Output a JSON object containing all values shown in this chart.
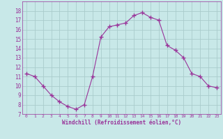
{
  "hours": [
    0,
    1,
    2,
    3,
    4,
    5,
    6,
    7,
    8,
    9,
    10,
    11,
    12,
    13,
    14,
    15,
    16,
    17,
    18,
    19,
    20,
    21,
    22,
    23
  ],
  "windchill": [
    11.3,
    11.0,
    10.0,
    9.0,
    8.3,
    7.8,
    7.5,
    8.0,
    11.0,
    15.2,
    16.3,
    16.5,
    16.7,
    17.5,
    17.8,
    17.3,
    17.0,
    14.3,
    13.8,
    13.0,
    11.3,
    11.0,
    10.0,
    9.8
  ],
  "line_color": "#993399",
  "marker": "+",
  "bg_color": "#c8e8e8",
  "grid_color": "#aacccc",
  "xlabel": "Windchill (Refroidissement éolien,°C)",
  "xlabel_color": "#993399",
  "tick_color": "#993399",
  "ylim": [
    7,
    19
  ],
  "xlim": [
    -0.5,
    23.5
  ],
  "yticks": [
    7,
    8,
    9,
    10,
    11,
    12,
    13,
    14,
    15,
    16,
    17,
    18
  ],
  "xticks": [
    0,
    1,
    2,
    3,
    4,
    5,
    6,
    7,
    8,
    9,
    10,
    11,
    12,
    13,
    14,
    15,
    16,
    17,
    18,
    19,
    20,
    21,
    22,
    23
  ]
}
